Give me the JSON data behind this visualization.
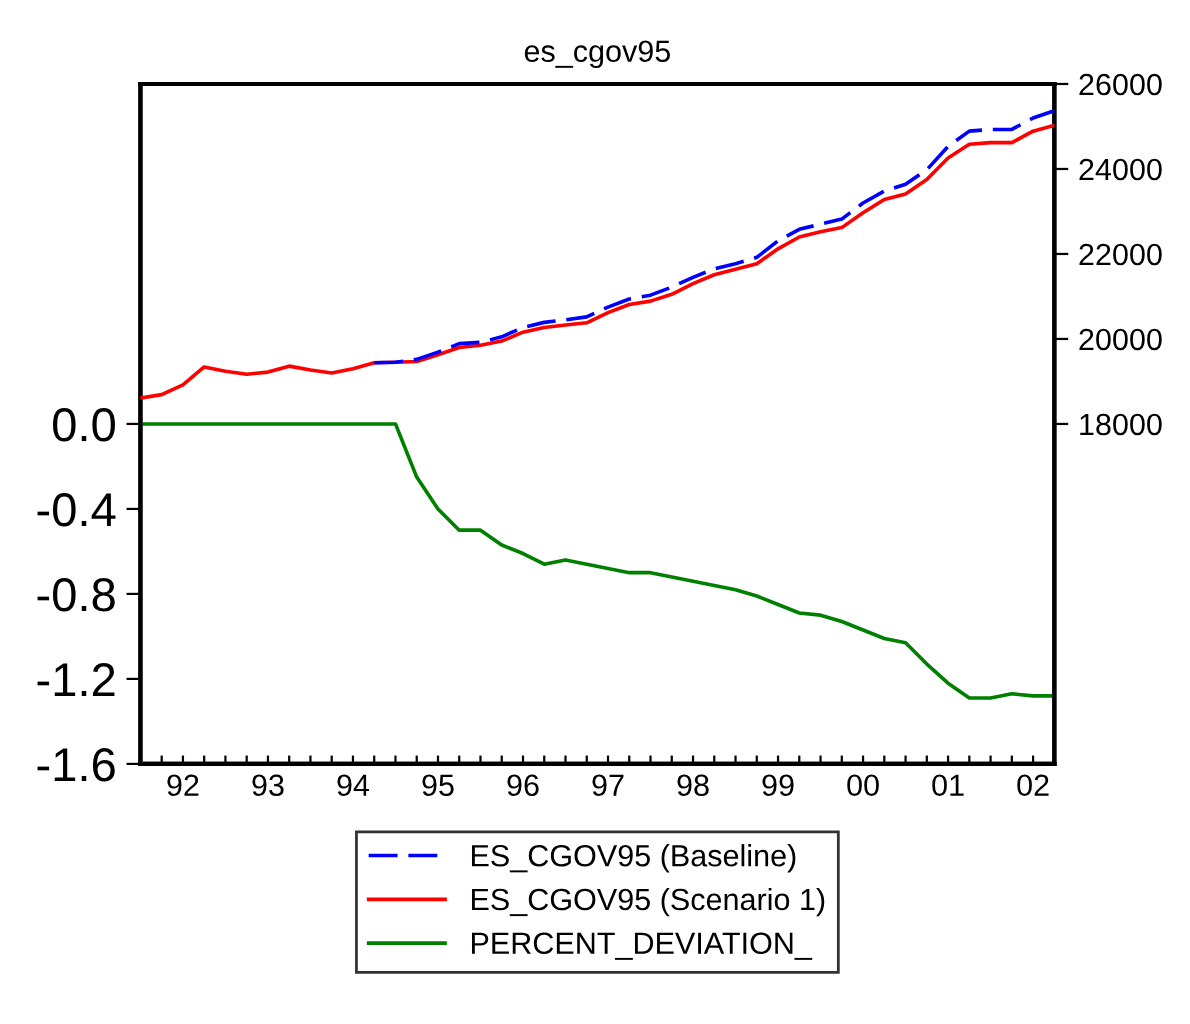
{
  "chart_data": {
    "type": "line",
    "title": "es_cgov95",
    "categories": [
      null,
      null,
      "92",
      null,
      null,
      null,
      "93",
      null,
      null,
      null,
      "94",
      null,
      null,
      null,
      "95",
      null,
      null,
      null,
      "96",
      null,
      null,
      null,
      "97",
      null,
      null,
      null,
      "98",
      null,
      null,
      null,
      "99",
      null,
      null,
      null,
      "00",
      null,
      null,
      null,
      "01",
      null,
      null,
      null,
      "02",
      null
    ],
    "series": [
      {
        "name": "ES_CGOV95 (Baseline)",
        "color": "#0000ff",
        "axis": "y2",
        "line_style": "dashed",
        "values": [
          null,
          null,
          null,
          null,
          null,
          null,
          null,
          null,
          null,
          null,
          null,
          19440,
          19450,
          19520,
          19690,
          19890,
          19920,
          20050,
          20270,
          20390,
          20450,
          20520,
          20750,
          20940,
          21030,
          21220,
          21450,
          21650,
          21770,
          21920,
          22310,
          22580,
          22700,
          22820,
          23200,
          23480,
          23640,
          23980,
          24530,
          24890,
          24930,
          24930,
          25200,
          25370
        ]
      },
      {
        "name": "ES_CGOV95 (Scenario 1)",
        "color": "#ff0000",
        "axis": "y2",
        "line_style": "solid",
        "values": [
          18610,
          18690,
          18920,
          19340,
          19240,
          19170,
          19220,
          19360,
          19270,
          19200,
          19300,
          19440,
          19450,
          19470,
          19630,
          19800,
          19850,
          19950,
          20160,
          20270,
          20330,
          20380,
          20620,
          20810,
          20890,
          21050,
          21300,
          21510,
          21640,
          21770,
          22120,
          22400,
          22520,
          22620,
          22970,
          23280,
          23410,
          23750,
          24260,
          24580,
          24620,
          24620,
          24890,
          25030
        ]
      },
      {
        "name": "PERCENT_DEVIATION_",
        "color": "#008000",
        "axis": "y",
        "line_style": "solid",
        "values": [
          0,
          0,
          0,
          0,
          0,
          0,
          0,
          0,
          0,
          0,
          0,
          0,
          0,
          -0.25,
          -0.4,
          -0.5,
          -0.5,
          -0.57,
          -0.61,
          -0.66,
          -0.64,
          -0.66,
          -0.68,
          -0.7,
          -0.7,
          -0.72,
          -0.74,
          -0.76,
          -0.78,
          -0.81,
          -0.85,
          -0.89,
          -0.9,
          -0.93,
          -0.97,
          -1.01,
          -1.03,
          -1.13,
          -1.22,
          -1.29,
          -1.29,
          -1.27,
          -1.28,
          -1.28
        ]
      }
    ],
    "ylim": [
      -1.6,
      1.6
    ],
    "yticks": [
      {
        "value": 0,
        "label": "0.0"
      },
      {
        "value": -0.4,
        "label": "-0.4"
      },
      {
        "value": -0.8,
        "label": "-0.8"
      },
      {
        "value": -1.2,
        "label": "-1.2"
      },
      {
        "value": -1.6,
        "label": "-1.6"
      }
    ],
    "y2lim": [
      10000,
      26000
    ],
    "y2ticks": [
      18000,
      20000,
      22000,
      24000,
      26000
    ],
    "grid": false,
    "legend": "bottom",
    "marker": "none"
  }
}
